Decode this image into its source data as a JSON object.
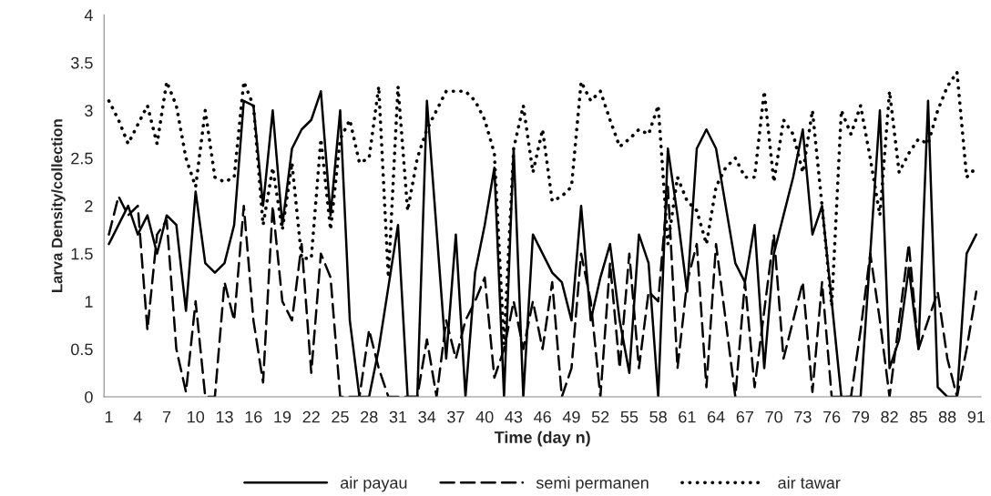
{
  "chart_data": {
    "type": "line",
    "xlabel": "Time (day n)",
    "ylabel": "Larva Density/collection",
    "categories": [
      "1",
      null,
      null,
      "4",
      null,
      null,
      "7",
      null,
      null,
      "10",
      null,
      null,
      "13",
      null,
      null,
      "16",
      null,
      null,
      "19",
      null,
      null,
      "22",
      null,
      null,
      "25",
      null,
      null,
      "28",
      null,
      null,
      "31",
      null,
      null,
      "34",
      null,
      null,
      "37",
      null,
      null,
      "40",
      null,
      null,
      "43",
      null,
      null,
      "46",
      null,
      null,
      "49",
      null,
      null,
      "52",
      null,
      null,
      "55",
      null,
      null,
      "58",
      null,
      null,
      "61",
      null,
      null,
      "64",
      null,
      null,
      "67",
      null,
      null,
      "70",
      null,
      null,
      "73",
      null,
      null,
      "76",
      null,
      null,
      "79",
      null,
      null,
      "82",
      null,
      null,
      "85",
      null,
      null,
      "88",
      null,
      null,
      "91"
    ],
    "series": [
      {
        "name": "air payau",
        "color": "#000000",
        "line_style": "solid",
        "values": [
          1.6,
          1.8,
          2.0,
          1.7,
          1.9,
          1.5,
          1.9,
          1.8,
          0.9,
          2.15,
          1.4,
          1.3,
          1.4,
          1.8,
          3.1,
          3.05,
          2.0,
          3.0,
          1.8,
          2.6,
          2.8,
          2.9,
          3.2,
          1.9,
          3.0,
          0.8,
          0,
          0,
          0.5,
          1.15,
          1.8,
          0,
          0,
          3.1,
          1.75,
          0.4,
          1.7,
          0,
          1.3,
          1.8,
          2.4,
          0,
          2.6,
          0,
          1.7,
          1.5,
          1.3,
          1.2,
          0.8,
          2.0,
          0.8,
          1.25,
          1.6,
          0.8,
          0.25,
          1.7,
          1.4,
          0,
          2.6,
          1.9,
          1.1,
          2.6,
          2.8,
          2.6,
          2.0,
          1.4,
          1.2,
          1.8,
          0.3,
          1.5,
          1.9,
          2.3,
          2.8,
          1.7,
          2.0,
          1.0,
          0,
          0,
          0,
          1.5,
          3.0,
          0.3,
          0.6,
          1.35,
          0.5,
          3.1,
          0.1,
          0,
          0,
          1.5,
          1.7
        ]
      },
      {
        "name": "semi permanen",
        "color": "#000000",
        "line_style": "dashed",
        "values": [
          1.7,
          2.1,
          1.9,
          2.0,
          0.7,
          1.7,
          1.85,
          0.5,
          0.05,
          1.0,
          0,
          0,
          1.2,
          0.8,
          2.0,
          0.8,
          0.15,
          2.0,
          1.0,
          0.8,
          1.6,
          0.25,
          1.5,
          1.25,
          0,
          0,
          0,
          0.7,
          0.3,
          0,
          0,
          0,
          0,
          0.6,
          0,
          0.8,
          0.4,
          0.8,
          1.0,
          1.25,
          0.2,
          0.5,
          1.0,
          0.5,
          1.0,
          0.5,
          1.2,
          0,
          0.3,
          1.5,
          1.0,
          0,
          1.4,
          0.3,
          1.5,
          0.3,
          1.1,
          1.0,
          2.2,
          0.3,
          1.2,
          1.6,
          0.1,
          1.6,
          0.8,
          0,
          1.2,
          0.1,
          0.9,
          1.7,
          0.4,
          0.8,
          1.2,
          0.05,
          1.2,
          0,
          0,
          0,
          0.7,
          1.5,
          0.8,
          0,
          0.8,
          1.6,
          0.5,
          0.8,
          1.1,
          0.4,
          0,
          0.5,
          1.1
        ]
      },
      {
        "name": "air tawar",
        "color": "#000000",
        "line_style": "dotted",
        "values": [
          3.1,
          2.9,
          2.65,
          2.85,
          3.05,
          2.65,
          3.3,
          3.05,
          2.5,
          2.2,
          3.0,
          2.3,
          2.25,
          2.3,
          3.3,
          3.05,
          1.8,
          2.4,
          1.75,
          2.45,
          1.45,
          1.45,
          2.7,
          1.75,
          2.7,
          2.9,
          2.45,
          2.5,
          3.25,
          1.25,
          3.25,
          1.95,
          2.5,
          2.8,
          3.0,
          3.2,
          3.2,
          3.2,
          3.1,
          2.9,
          2.55,
          0.55,
          2.6,
          3.05,
          2.35,
          2.8,
          2.05,
          2.1,
          2.2,
          3.3,
          3.1,
          3.2,
          2.9,
          2.62,
          2.7,
          2.8,
          2.75,
          3.05,
          1.6,
          2.3,
          2.05,
          1.95,
          1.6,
          2.2,
          2.4,
          2.5,
          2.3,
          2.3,
          3.2,
          2.25,
          2.9,
          2.75,
          2.35,
          3.0,
          2.0,
          0.95,
          3.0,
          2.75,
          3.05,
          2.5,
          1.9,
          3.2,
          2.35,
          2.55,
          2.7,
          2.65,
          3.0,
          3.25,
          3.4,
          2.3,
          2.4
        ]
      }
    ],
    "ylim": [
      0,
      4
    ],
    "yticks": [
      0,
      0.5,
      1,
      1.5,
      2,
      2.5,
      3,
      3.5,
      4
    ],
    "legend": "bottom",
    "grid": false
  }
}
